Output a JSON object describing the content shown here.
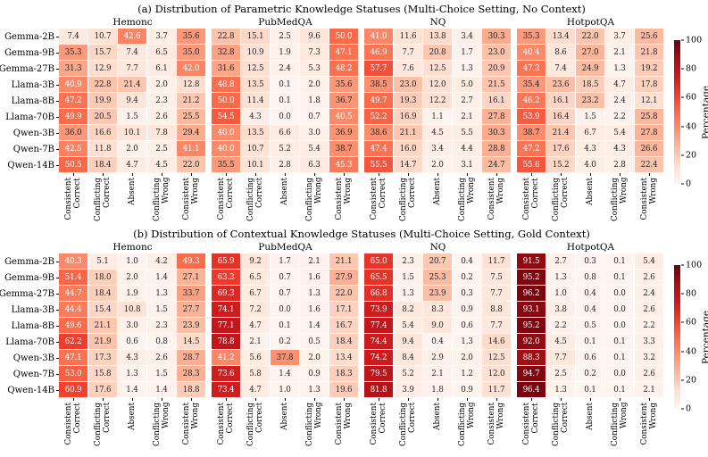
{
  "colors": {
    "reds": [
      "#fff5f0",
      "#fee0d2",
      "#fcbba1",
      "#fc9272",
      "#fb6a4a",
      "#ef3b2c",
      "#cb181d",
      "#a50f15",
      "#67000d"
    ],
    "annot_dark": "#262626",
    "annot_light": "#ffffff"
  },
  "chart_data": [
    {
      "type": "heatmap",
      "title": "(a) Distribution of Parametric Knowledge Statuses (Multi-Choice Setting, No Context)",
      "row_labels": [
        "Gemma-2B",
        "Gemma-9B",
        "Gemma-27B",
        "Llama-3B",
        "Llama-8B",
        "Llama-70B",
        "Qwen-3B",
        "Qwen-7B",
        "Qwen-14B"
      ],
      "col_groups": [
        "Hemonc",
        "PubMedQA",
        "NQ",
        "HotpotQA"
      ],
      "col_labels": [
        "Consistent\nCorrect",
        "Conflicting\nCorrect",
        "Absent",
        "Conflicting\nWrong",
        "Consistent\nWrong"
      ],
      "vmin": 0,
      "vmax": 100,
      "colormap": "Reds",
      "colorbar_label": "Percentage",
      "colorbar_ticks": [
        0,
        20,
        40,
        60,
        80,
        100
      ],
      "values": [
        [
          7.4,
          10.7,
          42.6,
          3.7,
          35.6,
          22.8,
          15.1,
          2.5,
          9.6,
          50.0,
          41.0,
          11.6,
          13.8,
          3.4,
          30.3,
          35.3,
          13.4,
          22.0,
          3.7,
          25.6
        ],
        [
          35.3,
          15.7,
          7.4,
          6.5,
          35.0,
          32.8,
          10.9,
          1.9,
          7.3,
          47.1,
          46.9,
          7.7,
          20.8,
          1.7,
          23.0,
          40.4,
          8.6,
          27.0,
          2.1,
          21.8
        ],
        [
          31.3,
          12.9,
          7.7,
          6.1,
          42.0,
          31.6,
          12.5,
          2.4,
          5.3,
          48.2,
          57.7,
          7.6,
          12.5,
          1.3,
          20.9,
          47.3,
          7.4,
          24.9,
          1.3,
          19.2
        ],
        [
          40.9,
          22.8,
          21.4,
          2.0,
          12.8,
          48.8,
          13.5,
          0.1,
          2.0,
          35.6,
          38.5,
          23.0,
          12.0,
          5.0,
          21.5,
          35.4,
          23.6,
          18.5,
          4.7,
          17.8
        ],
        [
          47.2,
          19.9,
          9.4,
          2.3,
          21.2,
          50.0,
          11.4,
          0.1,
          1.8,
          36.7,
          49.7,
          19.3,
          12.2,
          2.7,
          16.1,
          46.2,
          16.1,
          23.2,
          2.4,
          12.1
        ],
        [
          49.9,
          20.5,
          1.5,
          2.6,
          25.5,
          54.5,
          4.3,
          0.0,
          0.7,
          40.5,
          52.2,
          16.9,
          1.1,
          2.1,
          27.8,
          53.9,
          16.4,
          1.5,
          2.2,
          25.8
        ],
        [
          36.0,
          16.6,
          10.1,
          7.8,
          29.4,
          40.0,
          13.5,
          6.6,
          3.0,
          36.9,
          38.6,
          21.1,
          4.5,
          5.5,
          30.3,
          38.7,
          21.4,
          6.7,
          5.4,
          27.8
        ],
        [
          42.5,
          11.8,
          2.0,
          2.5,
          41.1,
          40.0,
          10.7,
          5.2,
          5.4,
          38.7,
          47.4,
          16.0,
          3.4,
          4.4,
          28.8,
          47.2,
          17.6,
          4.3,
          4.3,
          26.6
        ],
        [
          50.5,
          18.4,
          4.7,
          4.5,
          22.0,
          35.5,
          10.1,
          2.8,
          6.3,
          45.3,
          55.5,
          14.7,
          2.0,
          3.1,
          24.7,
          55.6,
          15.2,
          4.0,
          2.8,
          22.4
        ]
      ]
    },
    {
      "type": "heatmap",
      "title": "(b) Distribution of Contextual Knowledge Statuses (Multi-Choice Setting, Gold Context)",
      "row_labels": [
        "Gemma-2B",
        "Gemma-9B",
        "Gemma-27B",
        "Llama-3B",
        "Llama-8B",
        "Llama-70B",
        "Qwen-3B",
        "Qwen-7B",
        "Qwen-14B"
      ],
      "col_groups": [
        "Hemonc",
        "PubMedQA",
        "NQ",
        "HotpotQA"
      ],
      "col_labels": [
        "Consistent\nCorrect",
        "Conflicting\nCorrect",
        "Absent",
        "Conflicting\nWrong",
        "Consistent\nWrong"
      ],
      "vmin": 0,
      "vmax": 100,
      "colormap": "Reds",
      "colorbar_label": "Percentage",
      "colorbar_ticks": [
        0,
        20,
        40,
        60,
        80,
        100
      ],
      "values": [
        [
          40.3,
          5.1,
          1.0,
          4.2,
          49.3,
          65.9,
          9.2,
          1.7,
          2.1,
          21.1,
          65.0,
          2.3,
          20.7,
          0.4,
          11.7,
          91.5,
          2.7,
          0.3,
          0.1,
          5.4
        ],
        [
          51.4,
          18.0,
          2.0,
          1.4,
          27.1,
          63.3,
          6.5,
          0.7,
          1.6,
          27.9,
          65.5,
          1.5,
          25.3,
          0.2,
          7.5,
          95.2,
          1.3,
          0.8,
          0.1,
          2.6
        ],
        [
          44.7,
          18.4,
          1.9,
          1.3,
          33.7,
          69.3,
          6.7,
          0.7,
          1.3,
          22.0,
          66.8,
          1.3,
          23.9,
          0.3,
          7.7,
          96.2,
          1.0,
          0.4,
          0.0,
          2.4
        ],
        [
          44.4,
          15.4,
          10.8,
          1.5,
          27.7,
          74.1,
          7.2,
          0.0,
          1.6,
          17.1,
          73.9,
          8.2,
          8.3,
          0.9,
          8.8,
          93.1,
          3.8,
          0.4,
          0.0,
          2.6
        ],
        [
          49.6,
          21.1,
          3.0,
          2.3,
          23.9,
          77.1,
          4.7,
          0.1,
          1.4,
          16.7,
          77.4,
          5.4,
          9.0,
          0.6,
          7.7,
          95.2,
          2.2,
          0.5,
          0.0,
          2.2
        ],
        [
          62.2,
          21.9,
          0.6,
          0.8,
          14.5,
          78.8,
          2.1,
          0.2,
          0.5,
          18.4,
          74.4,
          9.4,
          0.4,
          1.3,
          14.6,
          92.0,
          4.5,
          0.1,
          0.1,
          3.3
        ],
        [
          47.1,
          17.3,
          4.3,
          2.6,
          28.7,
          41.2,
          5.6,
          37.8,
          2.0,
          13.4,
          74.2,
          8.4,
          2.9,
          2.0,
          12.5,
          88.3,
          7.7,
          0.6,
          0.1,
          3.2
        ],
        [
          53.0,
          15.8,
          1.3,
          1.5,
          28.3,
          73.6,
          5.8,
          1.4,
          0.9,
          18.3,
          79.5,
          5.2,
          2.1,
          1.2,
          12.0,
          94.7,
          2.5,
          0.2,
          0.0,
          2.6
        ],
        [
          60.9,
          17.6,
          1.4,
          1.4,
          18.8,
          73.4,
          4.7,
          1.0,
          1.3,
          19.6,
          81.8,
          3.9,
          1.8,
          0.9,
          11.7,
          96.4,
          1.3,
          0.1,
          0.1,
          2.1
        ]
      ]
    }
  ]
}
